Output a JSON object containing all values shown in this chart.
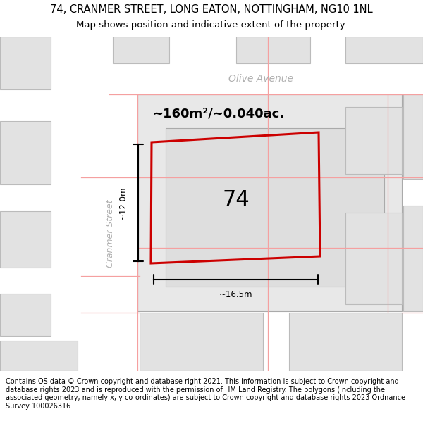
{
  "title": "74, CRANMER STREET, LONG EATON, NOTTINGHAM, NG10 1NL",
  "subtitle": "Map shows position and indicative extent of the property.",
  "footer": "Contains OS data © Crown copyright and database right 2021. This information is subject to Crown copyright and database rights 2023 and is reproduced with the permission of HM Land Registry. The polygons (including the associated geometry, namely x, y co-ordinates) are subject to Crown copyright and database rights 2023 Ordnance Survey 100026316.",
  "map_bg": "#f2f2f2",
  "street_color": "#ffffff",
  "block_color": "#e2e2e2",
  "block_edge": "#bbbbbb",
  "pink": "#f5a0a0",
  "red": "#cc0000",
  "olive_label": "Olive Avenue",
  "cranmer_label": "Cranmer Street",
  "area_label": "~160m²/~0.040ac.",
  "num_label": "74",
  "dim_w": "~16.5m",
  "dim_h": "~12.0m",
  "title_fontsize": 10.5,
  "subtitle_fontsize": 9.5,
  "footer_fontsize": 7.0
}
